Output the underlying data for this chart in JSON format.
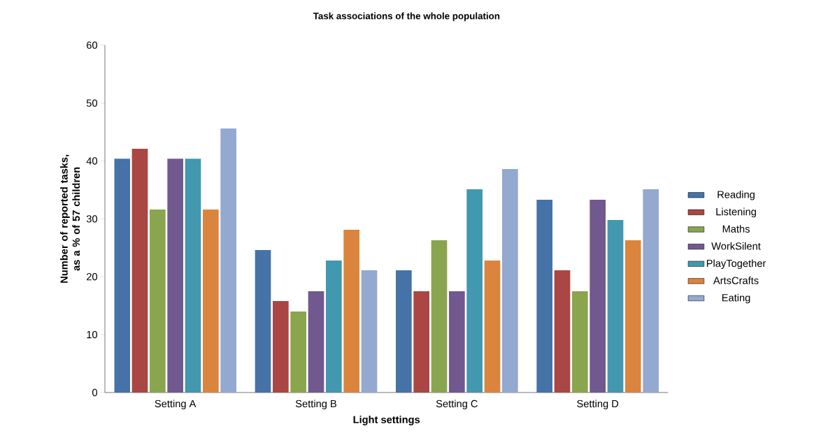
{
  "chart_data": {
    "type": "bar",
    "title": "Task associations of the whole population",
    "xlabel": "Light settings",
    "ylabel": "Number of reported tasks, as a % of  57 children",
    "categories": [
      "Setting A",
      "Setting B",
      "Setting C",
      "Setting D"
    ],
    "series": [
      {
        "name": "Reading",
        "color": "#4572a7",
        "values": [
          40.4,
          24.6,
          21.1,
          33.3
        ]
      },
      {
        "name": "Listening",
        "color": "#aa4643",
        "values": [
          42.1,
          15.8,
          17.5,
          21.1
        ]
      },
      {
        "name": "Maths",
        "color": "#89a54e",
        "values": [
          31.6,
          14.0,
          26.3,
          17.5
        ]
      },
      {
        "name": "WorkSilent",
        "color": "#71588f",
        "values": [
          40.4,
          17.5,
          17.5,
          33.3
        ]
      },
      {
        "name": "PlayTogether",
        "color": "#4198af",
        "values": [
          40.4,
          22.8,
          35.1,
          29.8
        ]
      },
      {
        "name": "ArtsCrafts",
        "color": "#db843d",
        "values": [
          31.6,
          28.1,
          22.8,
          26.3
        ]
      },
      {
        "name": "Eating",
        "color": "#93a9cf",
        "values": [
          45.6,
          21.1,
          38.6,
          35.1
        ]
      }
    ],
    "ylim": [
      0,
      60
    ],
    "yticks": [
      0,
      10,
      20,
      30,
      40,
      50,
      60
    ],
    "grid": false,
    "legend": "right"
  }
}
